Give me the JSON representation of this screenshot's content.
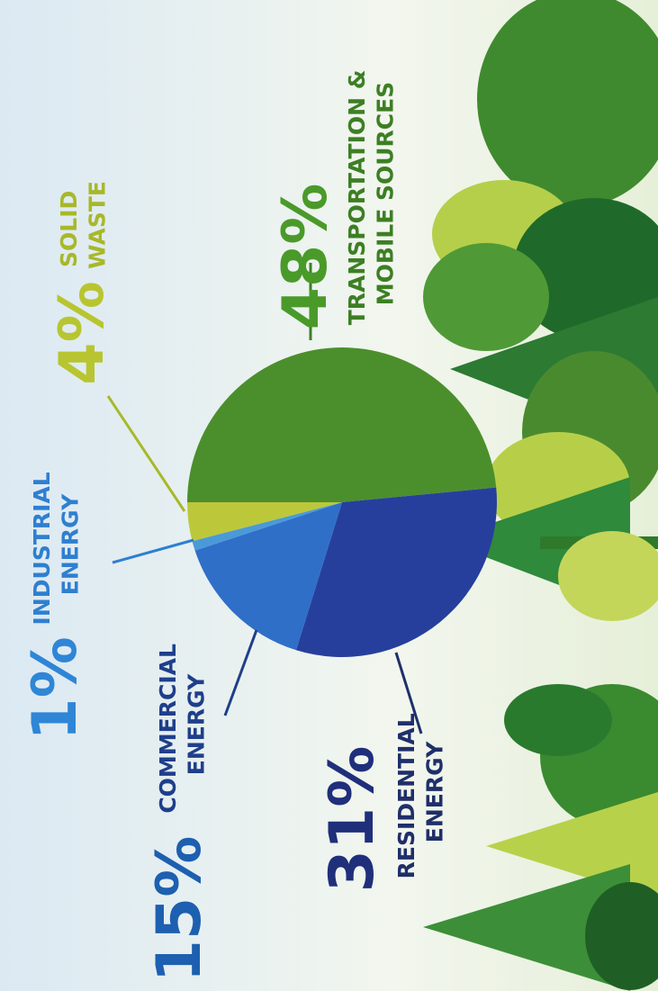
{
  "chart_data": {
    "type": "pie",
    "categories": [
      "TRANSPORTATION & MOBILE SOURCES",
      "RESIDENTIAL ENERGY",
      "COMMERCIAL ENERGY",
      "INDUSTRIAL ENERGY",
      "SOLID WASTE"
    ],
    "values": [
      48,
      31,
      15,
      1,
      4
    ],
    "value_labels": [
      "48%",
      "31%",
      "15%",
      "1%",
      "4%"
    ],
    "colors": [
      "#4b8f2c",
      "#273f9c",
      "#2f6fc8",
      "#4a9ad8",
      "#bcc83a"
    ]
  }
}
